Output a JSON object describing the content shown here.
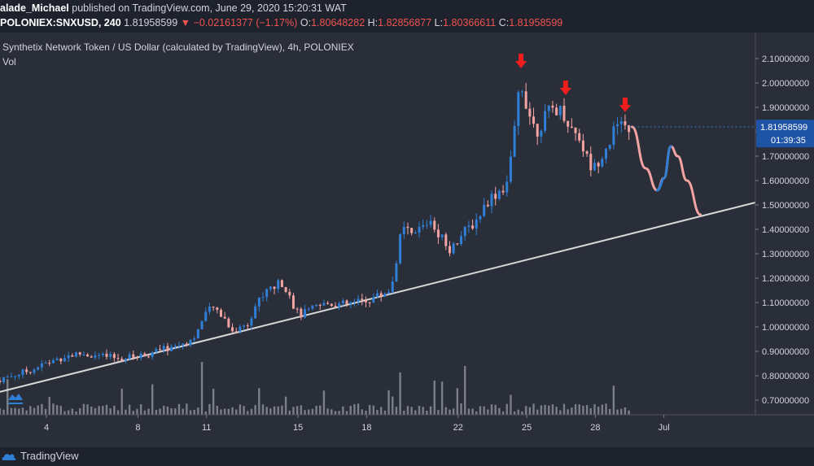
{
  "header": {
    "author": "alade_Michael",
    "published_text": "published on TradingView.com, June 29, 2020 15:20:31 WAT",
    "symbol": "POLONIEX:SNXUSD, 240",
    "last": "1.81958599",
    "change": "−0.02161377 (−1.17%)",
    "o_label": "O:",
    "o_value": "1.80648282",
    "h_label": "H:",
    "h_value": "1.82856877",
    "l_label": "L:",
    "l_value": "1.80366611",
    "c_label": "C:",
    "c_value": "1.81958599"
  },
  "footer": {
    "brand": "TradingView"
  },
  "colors": {
    "up": "#2f7fd6",
    "down": "#f4a3a3",
    "bg": "#2a2e39",
    "trendline": "#d8d8d8",
    "arrow": "#f01d1d",
    "price_label": "#1e53a6",
    "volume": "#8a8d94"
  },
  "chart_data": {
    "type": "candlestick",
    "title": "Synthetix Network Token / US Dollar (calculated by TradingView), 4h, POLONIEX",
    "volume_label": "Vol",
    "ylim": [
      0.66,
      2.13
    ],
    "y_ticks": [
      "2.10000000",
      "2.00000000",
      "1.90000000",
      "1.80000000",
      "1.70000000",
      "1.60000000",
      "1.50000000",
      "1.40000000",
      "1.30000000",
      "1.20000000",
      "1.10000000",
      "1.00000000",
      "0.90000000",
      "0.80000000",
      "0.70000000"
    ],
    "x_ticks": [
      {
        "label": "4",
        "day": 4
      },
      {
        "label": "8",
        "day": 8
      },
      {
        "label": "11",
        "day": 11
      },
      {
        "label": "15",
        "day": 15
      },
      {
        "label": "18",
        "day": 18
      },
      {
        "label": "22",
        "day": 22
      },
      {
        "label": "25",
        "day": 25
      },
      {
        "label": "28",
        "day": 28
      },
      {
        "label": "Jul",
        "day": 31
      }
    ],
    "current_price": "1.81958599",
    "countdown": "01:39:35",
    "close_path": [
      [
        1.8,
        0.78
      ],
      [
        2.5,
        0.8
      ],
      [
        3.2,
        0.82
      ],
      [
        4.0,
        0.85
      ],
      [
        4.8,
        0.88
      ],
      [
        5.5,
        0.89
      ],
      [
        6.3,
        0.88
      ],
      [
        7.2,
        0.87
      ],
      [
        8.0,
        0.88
      ],
      [
        8.8,
        0.9
      ],
      [
        9.6,
        0.92
      ],
      [
        10.4,
        0.95
      ],
      [
        10.8,
        1.02
      ],
      [
        11.2,
        1.08
      ],
      [
        11.6,
        1.06
      ],
      [
        12.2,
        0.98
      ],
      [
        12.8,
        1.02
      ],
      [
        13.2,
        1.1
      ],
      [
        13.8,
        1.16
      ],
      [
        14.3,
        1.18
      ],
      [
        14.6,
        1.15
      ],
      [
        14.9,
        1.06
      ],
      [
        15.2,
        1.05
      ],
      [
        15.8,
        1.08
      ],
      [
        16.4,
        1.1
      ],
      [
        17.0,
        1.09
      ],
      [
        17.6,
        1.1
      ],
      [
        18.0,
        1.11
      ],
      [
        18.6,
        1.13
      ],
      [
        19.1,
        1.16
      ],
      [
        19.4,
        1.34
      ],
      [
        19.6,
        1.4
      ],
      [
        20.0,
        1.37
      ],
      [
        20.5,
        1.42
      ],
      [
        20.8,
        1.44
      ],
      [
        21.2,
        1.38
      ],
      [
        21.6,
        1.32
      ],
      [
        22.2,
        1.38
      ],
      [
        22.8,
        1.44
      ],
      [
        23.3,
        1.52
      ],
      [
        23.8,
        1.56
      ],
      [
        24.1,
        1.58
      ],
      [
        24.3,
        1.68
      ],
      [
        24.5,
        1.82
      ],
      [
        24.7,
        2.02
      ],
      [
        24.9,
        1.95
      ],
      [
        25.1,
        1.88
      ],
      [
        25.4,
        1.8
      ],
      [
        25.8,
        1.86
      ],
      [
        26.2,
        1.9
      ],
      [
        26.6,
        1.88
      ],
      [
        26.9,
        1.82
      ],
      [
        27.3,
        1.78
      ],
      [
        27.6,
        1.7
      ],
      [
        27.9,
        1.64
      ],
      [
        28.2,
        1.7
      ],
      [
        28.6,
        1.76
      ],
      [
        28.9,
        1.82
      ],
      [
        29.2,
        1.81
      ],
      [
        29.5,
        1.82
      ]
    ],
    "projection": [
      {
        "day": 29.6,
        "value": 1.82
      },
      {
        "day": 30.2,
        "value": 1.65
      },
      {
        "day": 30.7,
        "value": 1.56
      },
      {
        "day": 31.0,
        "value": 1.61
      },
      {
        "day": 31.3,
        "value": 1.74
      },
      {
        "day": 31.6,
        "value": 1.7
      },
      {
        "day": 32.0,
        "value": 1.6
      },
      {
        "day": 32.6,
        "value": 1.46
      }
    ],
    "trendline": [
      {
        "day": 1.8,
        "value": 0.73
      },
      {
        "day": 35.0,
        "value": 1.51
      }
    ],
    "peak_arrows": [
      {
        "day": 24.75,
        "value": 2.06
      },
      {
        "day": 26.7,
        "value": 1.95
      },
      {
        "day": 29.3,
        "value": 1.88
      }
    ]
  }
}
